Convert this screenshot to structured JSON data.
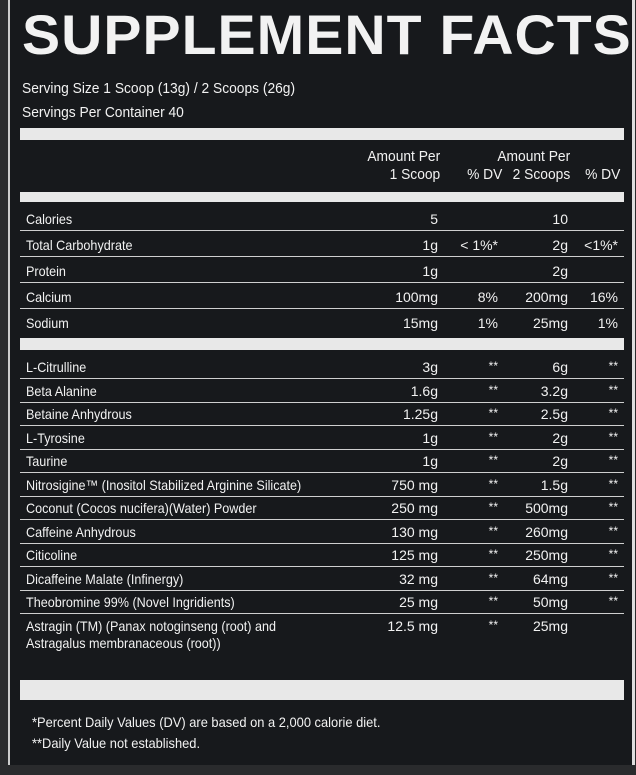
{
  "title": "SUPPLEMENT FACTS",
  "serving_size": "Serving Size 1 Scoop (13g) / 2 Scoops (26g)",
  "servings_per_container": "Servings Per Container 40",
  "header": {
    "amount_per_1": "Amount Per",
    "scoop_1": "1 Scoop",
    "dv_1": "% DV",
    "amount_per_2": "Amount Per",
    "scoop_2": "2 Scoops",
    "dv_2": "% DV"
  },
  "nutrients": [
    {
      "name": "Calories",
      "a1": "5",
      "d1": "",
      "a2": "10",
      "d2": ""
    },
    {
      "name": "Total Carbohydrate",
      "a1": "1g",
      "d1": "< 1%*",
      "a2": "2g",
      "d2": "<1%*"
    },
    {
      "name": "Protein",
      "a1": "1g",
      "d1": "",
      "a2": "2g",
      "d2": ""
    },
    {
      "name": "Calcium",
      "a1": "100mg",
      "d1": "8%",
      "a2": "200mg",
      "d2": "16%"
    },
    {
      "name": "Sodium",
      "a1": "15mg",
      "d1": "1%",
      "a2": "25mg",
      "d2": "1%"
    }
  ],
  "ingredients": [
    {
      "name": "L-Citrulline",
      "a1": "3g",
      "d1": "**",
      "a2": "6g",
      "d2": "**"
    },
    {
      "name": "Beta Alanine",
      "a1": "1.6g",
      "d1": "**",
      "a2": "3.2g",
      "d2": "**"
    },
    {
      "name": "Betaine Anhydrous",
      "a1": "1.25g",
      "d1": "**",
      "a2": "2.5g",
      "d2": "**"
    },
    {
      "name": "L-Tyrosine",
      "a1": "1g",
      "d1": "**",
      "a2": "2g",
      "d2": "**"
    },
    {
      "name": "Taurine",
      "a1": "1g",
      "d1": "**",
      "a2": "2g",
      "d2": "**"
    },
    {
      "name": "Nitrosigine™ (Inositol Stabilized Arginine Silicate)",
      "a1": "750 mg",
      "d1": "**",
      "a2": "1.5g",
      "d2": "**"
    },
    {
      "name": "Coconut (Cocos nucifera)(Water) Powder",
      "a1": "250 mg",
      "d1": "**",
      "a2": "500mg",
      "d2": "**"
    },
    {
      "name": "Caffeine Anhydrous",
      "a1": "130 mg",
      "d1": "**",
      "a2": "260mg",
      "d2": "**"
    },
    {
      "name": "Citicoline",
      "a1": "125 mg",
      "d1": "**",
      "a2": "250mg",
      "d2": "**"
    },
    {
      "name": "Dicaffeine Malate (Infinergy)",
      "a1": "32 mg",
      "d1": "**",
      "a2": "64mg",
      "d2": "**"
    },
    {
      "name": "Theobromine 99% (Novel Ingridients)",
      "a1": "25 mg",
      "d1": "**",
      "a2": "50mg",
      "d2": "**"
    },
    {
      "name": "Astragin (TM) (Panax notoginseng (root) and",
      "name2": "Astragalus membranaceous (root))",
      "a1": "12.5 mg",
      "d1": "**",
      "a2": "25mg",
      "d2": ""
    }
  ],
  "footnotes": [
    "*Percent Daily Values (DV) are based on a 2,000 calorie diet.",
    "**Daily Value not established."
  ]
}
